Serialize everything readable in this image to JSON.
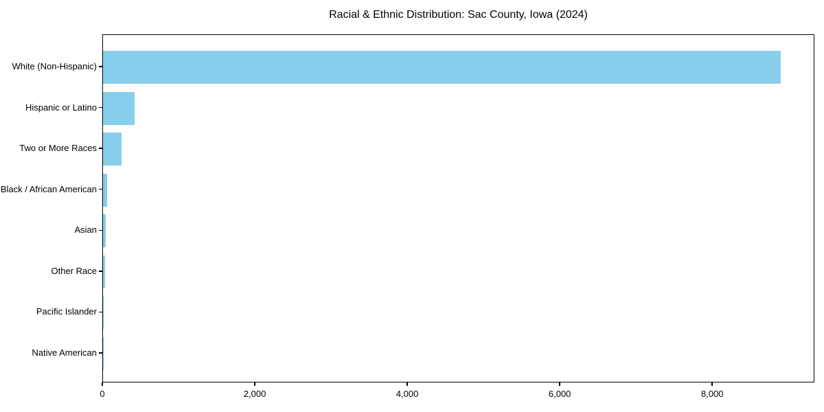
{
  "title": "Racial & Ethnic Distribution: Sac County, Iowa (2024)",
  "chart_data": {
    "type": "bar",
    "orientation": "horizontal",
    "title": "Racial & Ethnic Distribution: Sac County, Iowa (2024)",
    "xlabel": "",
    "ylabel": "",
    "categories": [
      "White (Non-Hispanic)",
      "Hispanic or Latino",
      "Two or More Races",
      "Black / African American",
      "Asian",
      "Other Race",
      "Pacific Islander",
      "Native American"
    ],
    "values": [
      8890,
      415,
      240,
      50,
      40,
      30,
      8,
      2
    ],
    "xlim": [
      0,
      9340
    ],
    "xticks": [
      0,
      2000,
      4000,
      6000,
      8000
    ],
    "xtick_labels": [
      "0",
      "2,000",
      "4,000",
      "6,000",
      "8,000"
    ],
    "grid": false,
    "legend": null,
    "bar_color": "#87CEEB"
  },
  "colors": {
    "bar": "#87CEEB",
    "axis": "#000000",
    "text": "#000000",
    "background": "#ffffff"
  }
}
